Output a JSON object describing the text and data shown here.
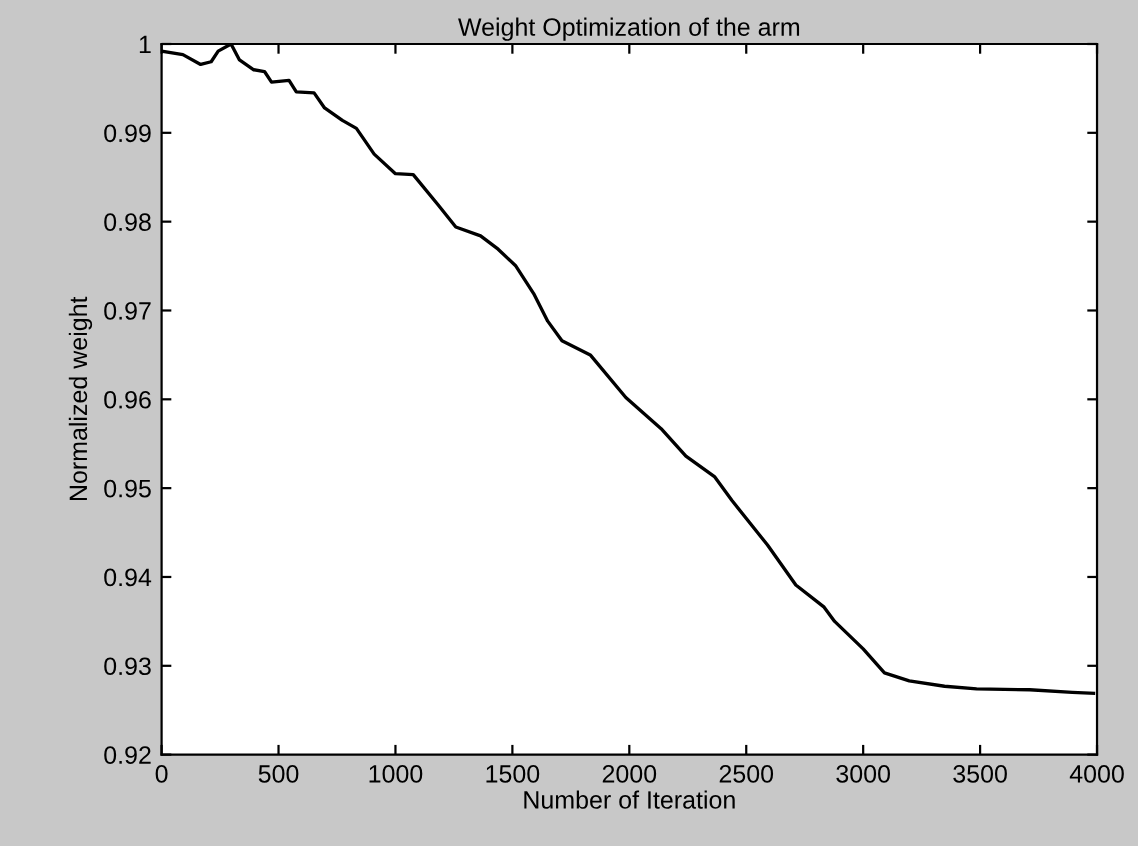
{
  "chart_data": {
    "type": "line",
    "title": "Weight Optimization of the arm",
    "xlabel": "Number of Iteration",
    "ylabel": "Normalized weight",
    "xlim": [
      0,
      4000
    ],
    "ylim": [
      0.92,
      1
    ],
    "xticks": [
      0,
      500,
      1000,
      1500,
      2000,
      2500,
      3000,
      3500,
      4000
    ],
    "yticks": [
      0.92,
      0.93,
      0.94,
      0.95,
      0.96,
      0.97,
      0.98,
      0.99,
      1
    ],
    "grid": false,
    "legend": false,
    "marker": "none",
    "line_style": "solid",
    "series": [
      {
        "color": "#000000",
        "x": [
          0,
          91,
          167,
          212,
          242,
          297,
          333,
          394,
          440,
          470,
          545,
          576,
          652,
          697,
          773,
          833,
          909,
          1000,
          1076,
          1182,
          1258,
          1364,
          1439,
          1515,
          1591,
          1651,
          1712,
          1833,
          1985,
          2136,
          2242,
          2364,
          2439,
          2591,
          2712,
          2833,
          2878,
          3000,
          3091,
          3197,
          3348,
          3485,
          3712,
          3894,
          3985
        ],
        "values": [
          0.9992,
          0.9988,
          0.9977,
          0.998,
          0.9992,
          1.0,
          0.9982,
          0.9971,
          0.9969,
          0.9957,
          0.9959,
          0.9946,
          0.9945,
          0.9928,
          0.9914,
          0.9905,
          0.9876,
          0.9854,
          0.9853,
          0.9819,
          0.9794,
          0.9784,
          0.9769,
          0.975,
          0.9719,
          0.9688,
          0.9666,
          0.965,
          0.9602,
          0.9567,
          0.9536,
          0.9513,
          0.9486,
          0.9436,
          0.9391,
          0.9366,
          0.935,
          0.9319,
          0.9292,
          0.9283,
          0.9277,
          0.9274,
          0.9273,
          0.927,
          0.9269
        ]
      }
    ]
  }
}
